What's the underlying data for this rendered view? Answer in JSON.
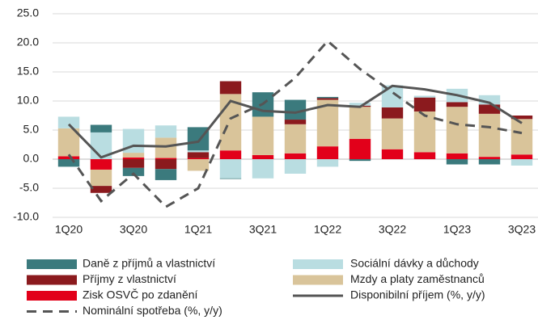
{
  "chart_data": {
    "type": "bar",
    "stacked": true,
    "categories": [
      "1Q20",
      null,
      "3Q20",
      null,
      "1Q21",
      null,
      "3Q21",
      null,
      "1Q22",
      null,
      "3Q22",
      null,
      "1Q23",
      null,
      "3Q23"
    ],
    "ylim": [
      -10,
      25
    ],
    "yticks": [
      {
        "value": -10,
        "label": "-10.0"
      },
      {
        "value": -5,
        "label": "-5.0"
      },
      {
        "value": 0,
        "label": "0.0"
      },
      {
        "value": 5,
        "label": "5.0"
      },
      {
        "value": 10,
        "label": "10.0"
      },
      {
        "value": 15,
        "label": "15.0"
      },
      {
        "value": 20,
        "label": "20.0"
      },
      {
        "value": 25,
        "label": "25.0"
      }
    ],
    "grid": true,
    "legend": "bottom",
    "series": [
      {
        "name": "Daně z příjmů a vlastnictví",
        "kind": "bar",
        "color": "#3b7a7d",
        "values": [
          -1.3,
          1.3,
          -1.4,
          -1.9,
          4.0,
          -0.1,
          4.2,
          3.4,
          0.2,
          -0.3,
          0,
          0,
          -0.9,
          -0.9,
          0
        ]
      },
      {
        "name": "Sociální dávky a důchody",
        "kind": "bar",
        "color": "#b9dde1",
        "values": [
          2.0,
          4.6,
          4.1,
          2.1,
          0.3,
          -3.3,
          -3.3,
          -2.5,
          -1.3,
          0.5,
          3.8,
          0.3,
          2.3,
          1.6,
          -1.1
        ]
      },
      {
        "name": "Příjmy z vlastnictví",
        "kind": "bar",
        "color": "#8b1a1e",
        "values": [
          0,
          -1.2,
          -1.5,
          -1.7,
          1.0,
          2.2,
          0,
          0.8,
          0.3,
          0.2,
          1.9,
          2.4,
          0.8,
          1.6,
          0.6
        ]
      },
      {
        "name": "Mzdy a platy zaměstnanců",
        "kind": "bar",
        "color": "#d9c49a",
        "values": [
          4.8,
          -2.8,
          0.8,
          3.5,
          -2.0,
          9.7,
          6.6,
          5.0,
          8.0,
          5.5,
          5.3,
          7.0,
          8.0,
          7.4,
          6.1
        ]
      },
      {
        "name": "Zisk OSVČ po zdanění",
        "kind": "bar",
        "color": "#e2001a",
        "values": [
          0.5,
          -1.8,
          0.3,
          0.2,
          0.2,
          1.5,
          0.7,
          1.0,
          2.2,
          3.5,
          1.7,
          1.2,
          1.0,
          0.4,
          0.8
        ]
      },
      {
        "name": "Disponibilní příjem (%, y/y)",
        "kind": "line",
        "linestyle": "solid",
        "color": "#555555",
        "values": [
          6.0,
          0.3,
          2.3,
          2.2,
          3.0,
          10.0,
          8.3,
          8.0,
          9.3,
          9.0,
          12.6,
          12.0,
          11.0,
          9.7,
          6.2
        ]
      },
      {
        "name": "Nominální spotřeba (%, y/y)",
        "kind": "line",
        "linestyle": "dashed",
        "color": "#555555",
        "values": [
          0.8,
          -7.2,
          -2.5,
          -8.2,
          -5.0,
          7.0,
          9.5,
          14.0,
          20.3,
          15.5,
          11.5,
          7.5,
          6.0,
          5.5,
          4.5
        ]
      }
    ]
  }
}
